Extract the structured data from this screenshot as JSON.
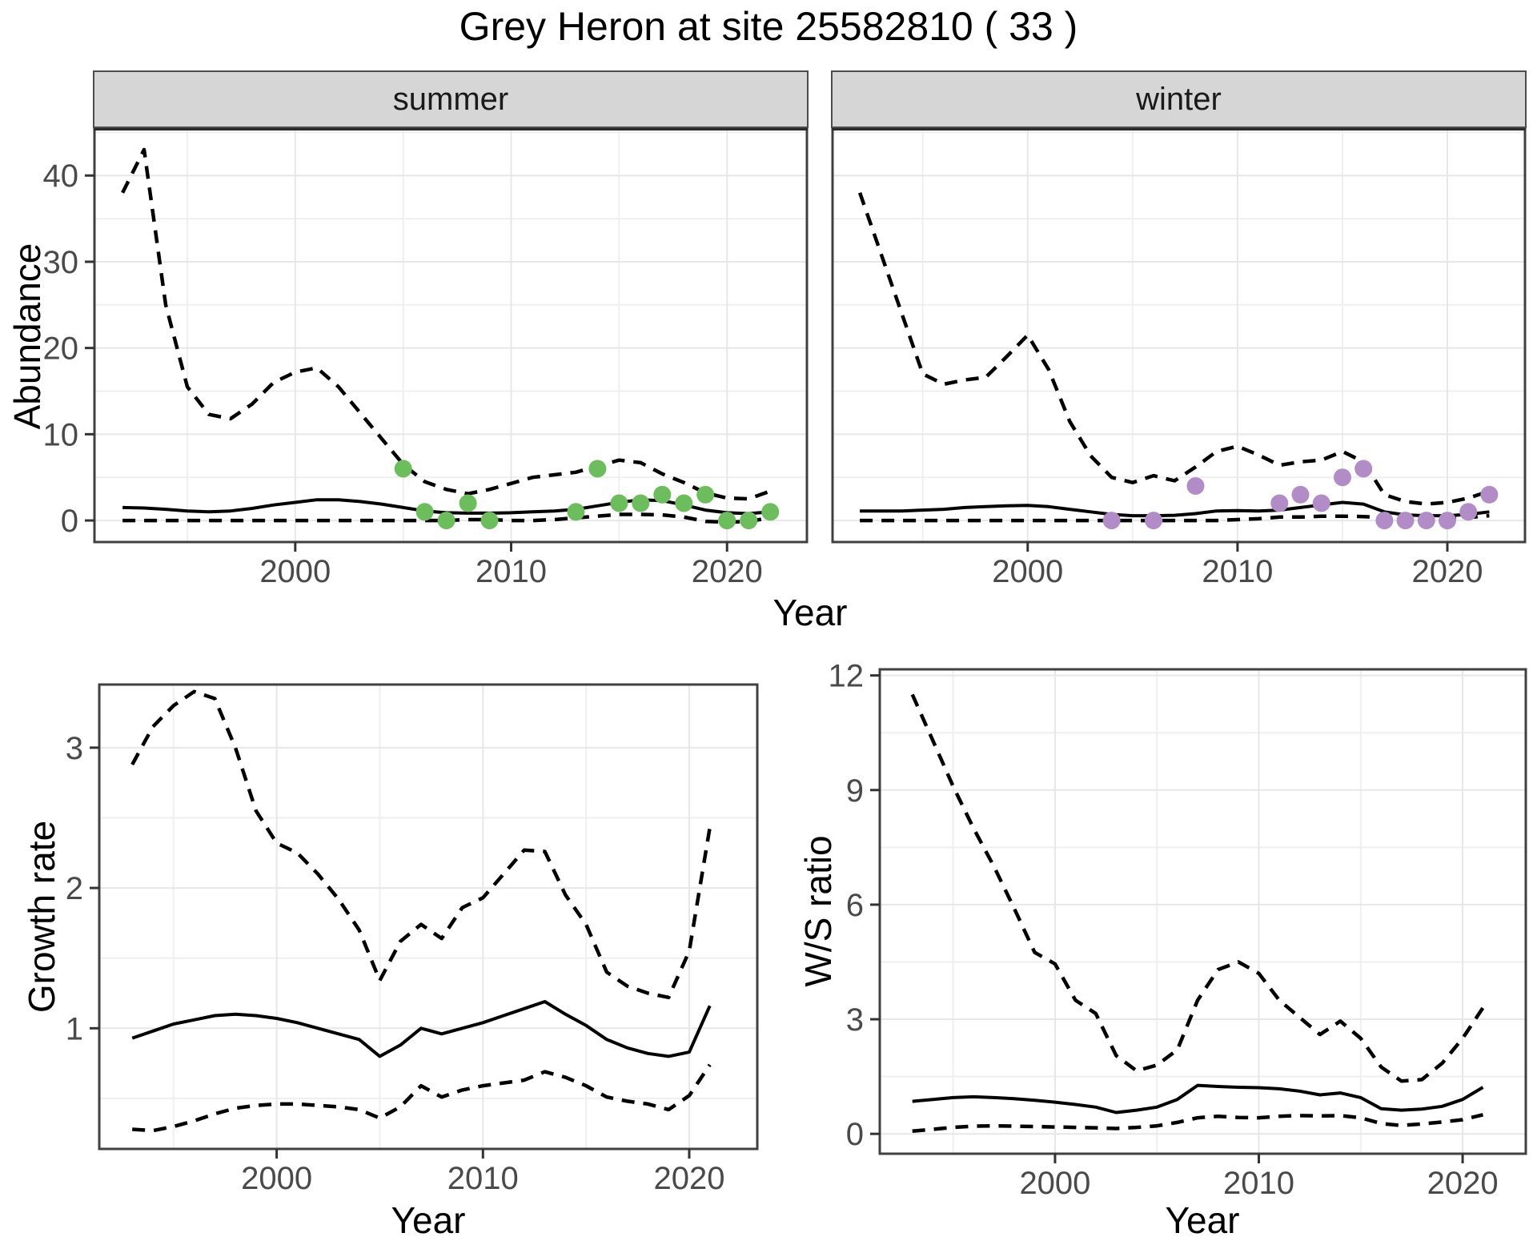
{
  "title": "Grey Heron at site 25582810 ( 33 )",
  "colors": {
    "summer_point": "#6cbd5b",
    "winter_point": "#b28cc6",
    "line": "#000000",
    "panel_border": "#404040",
    "strip_background": "#d6d6d6",
    "grid_major": "#e7e7e7",
    "grid_minor": "#efefef",
    "tick_label": "#4a4a4a",
    "tick_mark": "#333333"
  },
  "chart_data": [
    {
      "type": "line",
      "panel": "abundance-summer",
      "facet": "summer",
      "xlabel": "Year",
      "ylabel": "Abundance",
      "x_ticks": {
        "values": [
          2000,
          2010,
          2020
        ],
        "labels": [
          "2000",
          "2010",
          "2020"
        ]
      },
      "y_ticks": {
        "values": [
          0,
          10,
          20,
          30,
          40
        ],
        "labels": [
          "0",
          "10",
          "20",
          "30",
          "40"
        ]
      },
      "x_minor": [
        1995,
        2005,
        2015
      ],
      "y_minor": [
        5,
        15,
        25,
        35,
        45
      ],
      "xlim": [
        1990.7,
        2023.7
      ],
      "ylim": [
        -2.5,
        45.5
      ],
      "grid": true,
      "legend": "none",
      "series": [
        {
          "name": "upper 95% CI",
          "style": "dashed",
          "x": [
            1992,
            1993,
            1994,
            1995,
            1996,
            1997,
            1998,
            1999,
            2000,
            2001,
            2002,
            2003,
            2004,
            2005,
            2006,
            2007,
            2008,
            2009,
            2010,
            2011,
            2012,
            2013,
            2014,
            2015,
            2016,
            2017,
            2018,
            2019,
            2020,
            2021,
            2022
          ],
          "y": [
            38,
            43,
            25,
            15.5,
            12.3,
            11.8,
            13.5,
            16,
            17.2,
            17.7,
            15.5,
            12.5,
            9.5,
            6.5,
            4.5,
            3.6,
            3.1,
            3.6,
            4.3,
            5,
            5.3,
            5.6,
            6.3,
            7,
            6.7,
            5.4,
            4.4,
            3.2,
            2.6,
            2.5,
            3.4
          ]
        },
        {
          "name": "median",
          "style": "solid",
          "x": [
            1992,
            1993,
            1994,
            1995,
            1996,
            1997,
            1998,
            1999,
            2000,
            2001,
            2002,
            2003,
            2004,
            2005,
            2006,
            2007,
            2008,
            2009,
            2010,
            2011,
            2012,
            2013,
            2014,
            2015,
            2016,
            2017,
            2018,
            2019,
            2020,
            2021,
            2022
          ],
          "y": [
            1.5,
            1.45,
            1.3,
            1.1,
            1.0,
            1.1,
            1.4,
            1.8,
            2.1,
            2.4,
            2.4,
            2.2,
            1.9,
            1.5,
            1.1,
            0.9,
            0.85,
            0.85,
            0.9,
            1.0,
            1.1,
            1.3,
            1.7,
            2.1,
            2.4,
            2.3,
            1.8,
            1.2,
            0.9,
            0.8,
            1.0
          ]
        },
        {
          "name": "lower 95% CI",
          "style": "dashed",
          "x": [
            1992,
            1993,
            1994,
            1995,
            1996,
            1997,
            1998,
            1999,
            2000,
            2001,
            2002,
            2003,
            2004,
            2005,
            2006,
            2007,
            2008,
            2009,
            2010,
            2011,
            2012,
            2013,
            2014,
            2015,
            2016,
            2017,
            2018,
            2019,
            2020,
            2021,
            2022
          ],
          "y": [
            0,
            0,
            0,
            0,
            0,
            0,
            0,
            0,
            0,
            0,
            0,
            0,
            0,
            0,
            0,
            0,
            0.1,
            0.1,
            0,
            0,
            0.1,
            0.3,
            0.5,
            0.7,
            0.7,
            0.65,
            0.4,
            -0.1,
            -0.2,
            -0.1,
            0.3
          ]
        },
        {
          "name": "observed counts",
          "style": "points",
          "color": "#6cbd5b",
          "x": [
            2005,
            2006,
            2007,
            2008,
            2009,
            2013,
            2014,
            2015,
            2016,
            2017,
            2018,
            2019,
            2020,
            2021,
            2022
          ],
          "y": [
            6,
            1,
            0,
            2,
            0,
            1,
            6,
            2,
            2,
            3,
            2,
            3,
            0,
            0,
            1
          ]
        }
      ]
    },
    {
      "type": "line",
      "panel": "abundance-winter",
      "facet": "winter",
      "xlabel": "Year",
      "ylabel": "Abundance",
      "x_ticks": {
        "values": [
          2000,
          2010,
          2020
        ],
        "labels": [
          "2000",
          "2010",
          "2020"
        ]
      },
      "y_ticks": {
        "values": [
          0,
          10,
          20,
          30,
          40
        ],
        "labels": [
          "0",
          "10",
          "20",
          "30",
          "40"
        ]
      },
      "x_minor": [
        1995,
        2005,
        2015
      ],
      "y_minor": [
        5,
        15,
        25,
        35,
        45
      ],
      "xlim": [
        1990.7,
        2023.7
      ],
      "ylim": [
        -2.5,
        45.5
      ],
      "grid": true,
      "legend": "none",
      "series": [
        {
          "name": "upper 95% CI",
          "style": "dashed",
          "x": [
            1992,
            1993,
            1994,
            1995,
            1996,
            1997,
            1998,
            1999,
            2000,
            2001,
            2002,
            2003,
            2004,
            2005,
            2006,
            2007,
            2008,
            2009,
            2010,
            2011,
            2012,
            2013,
            2014,
            2015,
            2016,
            2017,
            2018,
            2019,
            2020,
            2021,
            2022
          ],
          "y": [
            38,
            31,
            24,
            17,
            15.8,
            16.3,
            16.6,
            19,
            21.5,
            17.5,
            11.5,
            7.5,
            5,
            4.4,
            5.2,
            4.6,
            6.2,
            8,
            8.6,
            7.6,
            6.4,
            6.8,
            7,
            8,
            6.8,
            3,
            2.2,
            1.9,
            2.1,
            2.6,
            3.4
          ]
        },
        {
          "name": "median",
          "style": "solid",
          "x": [
            1992,
            1993,
            1994,
            1995,
            1996,
            1997,
            1998,
            1999,
            2000,
            2001,
            2002,
            2003,
            2004,
            2005,
            2006,
            2007,
            2008,
            2009,
            2010,
            2011,
            2012,
            2013,
            2014,
            2015,
            2016,
            2017,
            2018,
            2019,
            2020,
            2021,
            2022
          ],
          "y": [
            1.1,
            1.1,
            1.1,
            1.2,
            1.3,
            1.5,
            1.6,
            1.7,
            1.75,
            1.6,
            1.3,
            1.0,
            0.7,
            0.55,
            0.55,
            0.6,
            0.8,
            1.1,
            1.15,
            1.1,
            1.2,
            1.5,
            1.8,
            2.1,
            1.9,
            1.0,
            0.65,
            0.55,
            0.55,
            0.7,
            1.0
          ]
        },
        {
          "name": "lower 95% CI",
          "style": "dashed",
          "x": [
            1992,
            1993,
            1994,
            1995,
            1996,
            1997,
            1998,
            1999,
            2000,
            2001,
            2002,
            2003,
            2004,
            2005,
            2006,
            2007,
            2008,
            2009,
            2010,
            2011,
            2012,
            2013,
            2014,
            2015,
            2016,
            2017,
            2018,
            2019,
            2020,
            2021,
            2022
          ],
          "y": [
            0,
            0,
            0,
            0,
            0,
            0,
            0,
            0,
            0,
            0,
            0,
            0,
            0,
            0,
            0,
            0,
            0,
            0,
            0.1,
            0.2,
            0.4,
            0.4,
            0.5,
            0.5,
            0.45,
            0.3,
            0.25,
            0.25,
            0.25,
            0.35,
            0.55
          ]
        },
        {
          "name": "observed counts",
          "style": "points",
          "color": "#b28cc6",
          "x": [
            2004,
            2006,
            2008,
            2012,
            2013,
            2014,
            2015,
            2016,
            2017,
            2018,
            2019,
            2020,
            2021,
            2022
          ],
          "y": [
            0,
            0,
            4,
            2,
            3,
            2,
            5,
            6,
            0,
            0,
            0,
            0,
            1,
            3
          ]
        }
      ]
    },
    {
      "type": "line",
      "panel": "growth-rate",
      "facet": null,
      "xlabel": "Year",
      "ylabel": "Growth rate",
      "x_ticks": {
        "values": [
          2000,
          2010,
          2020
        ],
        "labels": [
          "2000",
          "2010",
          "2020"
        ]
      },
      "y_ticks": {
        "values": [
          1,
          2,
          3
        ],
        "labels": [
          "1",
          "2",
          "3"
        ]
      },
      "x_minor": [
        1995,
        2005,
        2015
      ],
      "y_minor": [
        0.5,
        1.5,
        2.5
      ],
      "xlim": [
        1991.4,
        2023.3
      ],
      "ylim": [
        0.14,
        3.45
      ],
      "grid": true,
      "legend": "none",
      "series": [
        {
          "name": "upper 95% CI",
          "style": "dashed",
          "x": [
            1993,
            1994,
            1995,
            1996,
            1997,
            1998,
            1999,
            2000,
            2001,
            2002,
            2003,
            2004,
            2005,
            2006,
            2007,
            2008,
            2009,
            2010,
            2011,
            2012,
            2013,
            2014,
            2015,
            2016,
            2017,
            2018,
            2019,
            2020,
            2021
          ],
          "y": [
            2.88,
            3.15,
            3.3,
            3.4,
            3.35,
            3.0,
            2.55,
            2.32,
            2.25,
            2.1,
            1.92,
            1.7,
            1.34,
            1.62,
            1.74,
            1.64,
            1.86,
            1.93,
            2.1,
            2.27,
            2.26,
            1.95,
            1.74,
            1.4,
            1.3,
            1.25,
            1.22,
            1.55,
            2.43
          ]
        },
        {
          "name": "median",
          "style": "solid",
          "x": [
            1993,
            1994,
            1995,
            1996,
            1997,
            1998,
            1999,
            2000,
            2001,
            2002,
            2003,
            2004,
            2005,
            2006,
            2007,
            2008,
            2009,
            2010,
            2011,
            2012,
            2013,
            2014,
            2015,
            2016,
            2017,
            2018,
            2019,
            2020,
            2021
          ],
          "y": [
            0.93,
            0.98,
            1.03,
            1.06,
            1.09,
            1.1,
            1.09,
            1.07,
            1.04,
            1.0,
            0.96,
            0.92,
            0.8,
            0.88,
            1.0,
            0.96,
            1.0,
            1.04,
            1.09,
            1.14,
            1.19,
            1.1,
            1.02,
            0.92,
            0.86,
            0.82,
            0.8,
            0.83,
            1.16
          ]
        },
        {
          "name": "lower 95% CI",
          "style": "dashed",
          "x": [
            1993,
            1994,
            1995,
            1996,
            1997,
            1998,
            1999,
            2000,
            2001,
            2002,
            2003,
            2004,
            2005,
            2006,
            2007,
            2008,
            2009,
            2010,
            2011,
            2012,
            2013,
            2014,
            2015,
            2016,
            2017,
            2018,
            2019,
            2020,
            2021
          ],
          "y": [
            0.28,
            0.27,
            0.3,
            0.34,
            0.39,
            0.43,
            0.45,
            0.46,
            0.46,
            0.45,
            0.44,
            0.42,
            0.36,
            0.44,
            0.59,
            0.51,
            0.56,
            0.59,
            0.61,
            0.63,
            0.69,
            0.65,
            0.59,
            0.51,
            0.48,
            0.46,
            0.42,
            0.52,
            0.74
          ]
        }
      ]
    },
    {
      "type": "line",
      "panel": "ws-ratio",
      "facet": null,
      "xlabel": "Year",
      "ylabel": "W/S ratio",
      "x_ticks": {
        "values": [
          2000,
          2010,
          2020
        ],
        "labels": [
          "2000",
          "2010",
          "2020"
        ]
      },
      "y_ticks": {
        "values": [
          0,
          3,
          6,
          9,
          12
        ],
        "labels": [
          "0",
          "3",
          "6",
          "9",
          "12"
        ]
      },
      "x_minor": [
        1995,
        2005,
        2015
      ],
      "y_minor": [
        1.5,
        4.5,
        7.5,
        10.5
      ],
      "xlim": [
        1991.4,
        2023.1
      ],
      "ylim": [
        -0.52,
        12.16
      ],
      "grid": true,
      "legend": "none",
      "series": [
        {
          "name": "upper 95% CI",
          "style": "dashed",
          "x": [
            1993,
            1994,
            1995,
            1996,
            1997,
            1998,
            1999,
            2000,
            2001,
            2002,
            2003,
            2004,
            2005,
            2006,
            2007,
            2008,
            2009,
            2010,
            2011,
            2012,
            2013,
            2014,
            2015,
            2016,
            2017,
            2018,
            2019,
            2020,
            2021
          ],
          "y": [
            11.5,
            10.3,
            9.1,
            8.0,
            7.0,
            5.9,
            4.75,
            4.45,
            3.5,
            3.15,
            2.05,
            1.65,
            1.8,
            2.2,
            3.5,
            4.3,
            4.5,
            4.2,
            3.5,
            3.05,
            2.6,
            2.95,
            2.5,
            1.75,
            1.38,
            1.42,
            1.85,
            2.5,
            3.3
          ]
        },
        {
          "name": "median",
          "style": "solid",
          "x": [
            1993,
            1994,
            1995,
            1996,
            1997,
            1998,
            1999,
            2000,
            2001,
            2002,
            2003,
            2004,
            2005,
            2006,
            2007,
            2008,
            2009,
            2010,
            2011,
            2012,
            2013,
            2014,
            2015,
            2016,
            2017,
            2018,
            2019,
            2020,
            2021
          ],
          "y": [
            0.85,
            0.9,
            0.95,
            0.97,
            0.95,
            0.92,
            0.88,
            0.83,
            0.77,
            0.7,
            0.56,
            0.62,
            0.7,
            0.9,
            1.27,
            1.24,
            1.22,
            1.21,
            1.18,
            1.12,
            1.02,
            1.07,
            0.95,
            0.66,
            0.62,
            0.65,
            0.72,
            0.9,
            1.22
          ]
        },
        {
          "name": "lower 95% CI",
          "style": "dashed",
          "x": [
            1993,
            1994,
            1995,
            1996,
            1997,
            1998,
            1999,
            2000,
            2001,
            2002,
            2003,
            2004,
            2005,
            2006,
            2007,
            2008,
            2009,
            2010,
            2011,
            2012,
            2013,
            2014,
            2015,
            2016,
            2017,
            2018,
            2019,
            2020,
            2021
          ],
          "y": [
            0.07,
            0.12,
            0.17,
            0.2,
            0.21,
            0.2,
            0.19,
            0.18,
            0.17,
            0.16,
            0.14,
            0.17,
            0.21,
            0.3,
            0.42,
            0.46,
            0.43,
            0.42,
            0.46,
            0.48,
            0.47,
            0.48,
            0.42,
            0.27,
            0.22,
            0.26,
            0.31,
            0.37,
            0.5
          ]
        }
      ]
    }
  ]
}
